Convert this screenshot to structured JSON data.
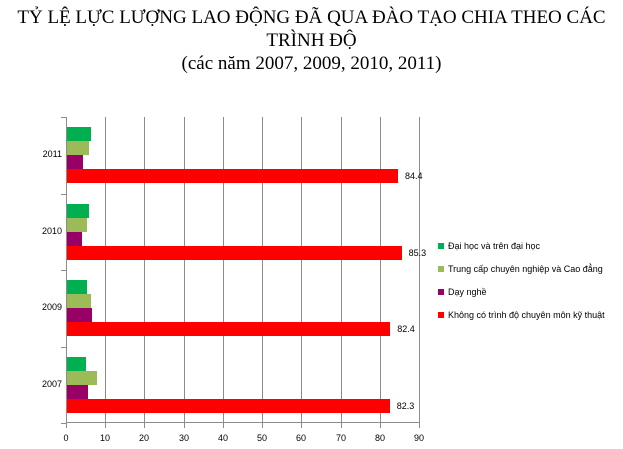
{
  "title": {
    "line1": "TỶ LỆ LỰC LƯỢNG LAO ĐỘNG ĐÃ QUA ĐÀO TẠO CHIA THEO CÁC",
    "line2": "TRÌNH ĐỘ",
    "line3": "(các năm 2007, 2009, 2010, 2011)"
  },
  "legend": {
    "items": [
      {
        "label": "Đại học và trên đại học",
        "color": "#00b050"
      },
      {
        "label": "Trung cấp chuyên nghiệp và Cao đẳng",
        "color": "#9bbb59"
      },
      {
        "label": "Dạy nghề",
        "color": "#990066"
      },
      {
        "label": "Không có trình độ chuyên môn kỹ thuật",
        "color": "#ff0000"
      }
    ]
  },
  "axis": {
    "x_ticks": [
      "0",
      "10",
      "20",
      "30",
      "40",
      "50",
      "60",
      "70",
      "80",
      "90"
    ],
    "categories_top_to_bottom": [
      "2011",
      "2010",
      "2009",
      "2007"
    ]
  },
  "labels": {
    "y2011": "84.4",
    "y2010": "85.3",
    "y2009": "82.4",
    "y2007": "82.3"
  },
  "chart_data": {
    "type": "bar",
    "orientation": "horizontal",
    "title": "TỶ LỆ LỰC LƯỢNG LAO ĐỘNG ĐÃ QUA ĐÀO TẠO CHIA THEO CÁC TRÌNH ĐỘ (các năm 2007, 2009, 2010, 2011)",
    "categories": [
      "2007",
      "2009",
      "2010",
      "2011"
    ],
    "series": [
      {
        "name": "Đại học và trên đại học",
        "color": "#00b050",
        "values": [
          4.8,
          5.1,
          5.6,
          6.1
        ]
      },
      {
        "name": "Trung cấp chuyên nghiệp và Cao đẳng",
        "color": "#9bbb59",
        "values": [
          7.7,
          6.1,
          5.1,
          5.6
        ]
      },
      {
        "name": "Dạy nghề",
        "color": "#990066",
        "values": [
          5.4,
          6.4,
          3.8,
          4.0
        ]
      },
      {
        "name": "Không có trình độ chuyên môn kỹ thuật",
        "color": "#ff0000",
        "values": [
          82.3,
          82.4,
          85.3,
          84.4
        ]
      }
    ],
    "data_labels": {
      "Không có trình độ chuyên môn kỹ thuật": [
        "82.3",
        "82.4",
        "85.3",
        "84.4"
      ]
    },
    "xlabel": "",
    "ylabel": "",
    "xlim": [
      0,
      90
    ],
    "x_ticks": [
      0,
      10,
      20,
      30,
      40,
      50,
      60,
      70,
      80,
      90
    ],
    "grid": "vertical",
    "legend_position": "right"
  }
}
